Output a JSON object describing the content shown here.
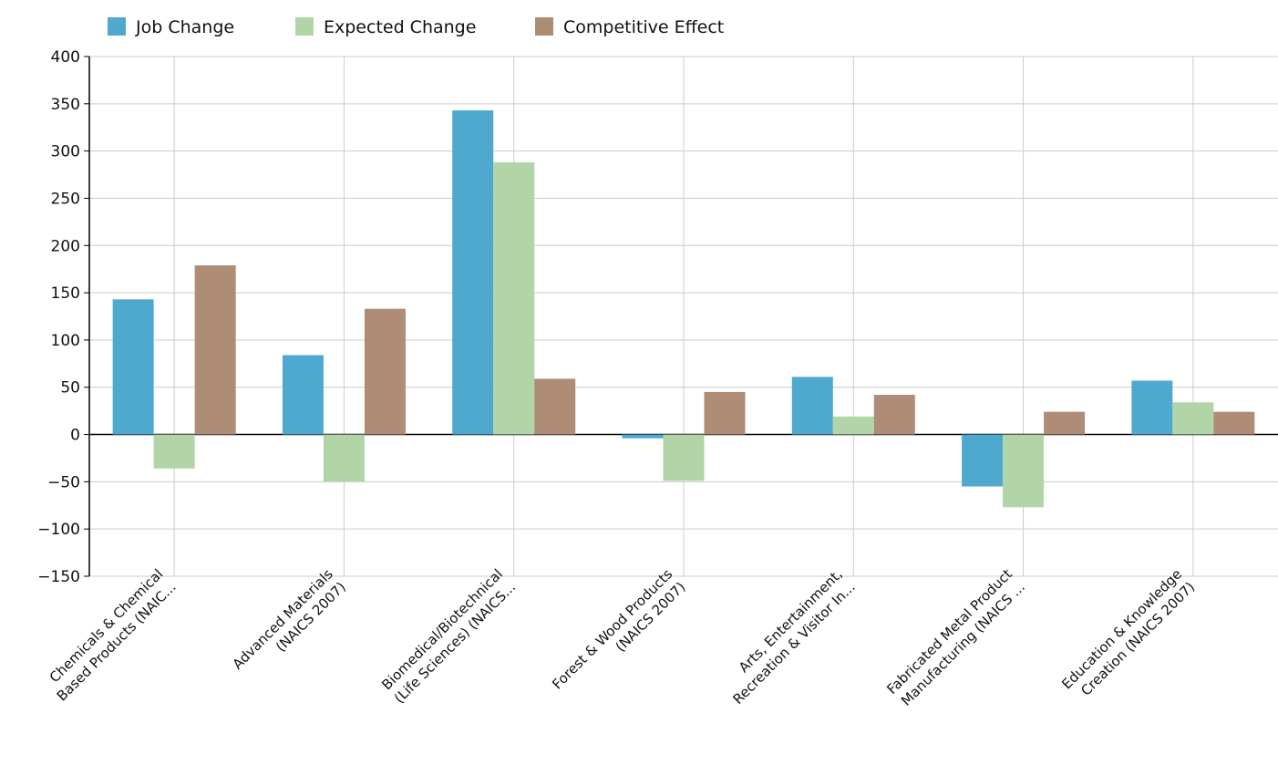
{
  "chart_data": {
    "type": "bar",
    "title": "",
    "xlabel": "",
    "ylabel": "",
    "ylim": [
      -150,
      400
    ],
    "yticks": [
      400,
      350,
      300,
      250,
      200,
      150,
      100,
      50,
      0,
      -50,
      -100,
      -150
    ],
    "grid": true,
    "legend_position": "top-left",
    "categories": [
      [
        "Chemicals & Chemical",
        "Based Products (NAIC..."
      ],
      [
        "Advanced Materials",
        "(NAICS 2007)"
      ],
      [
        "Biomedical/Biotechnical",
        "(Life Sciences) (NAICS..."
      ],
      [
        "Forest & Wood Products",
        "(NAICS 2007)"
      ],
      [
        "Arts, Entertainment,",
        "Recreation & Visitor In..."
      ],
      [
        "Fabricated Metal Product",
        "Manufacturing (NAICS ..."
      ],
      [
        "Education & Knowledge",
        "Creation (NAICS 2007)"
      ]
    ],
    "series": [
      {
        "name": "Job Change",
        "color": "#4fa9cf",
        "values": [
          143,
          84,
          343,
          -4,
          61,
          -55,
          57
        ]
      },
      {
        "name": "Expected Change",
        "color": "#b2d5a7",
        "values": [
          -36,
          -50,
          288,
          -49,
          19,
          -77,
          34
        ]
      },
      {
        "name": "Competitive Effect",
        "color": "#ae8c75",
        "values": [
          179,
          133,
          59,
          45,
          42,
          24,
          24
        ]
      }
    ]
  }
}
